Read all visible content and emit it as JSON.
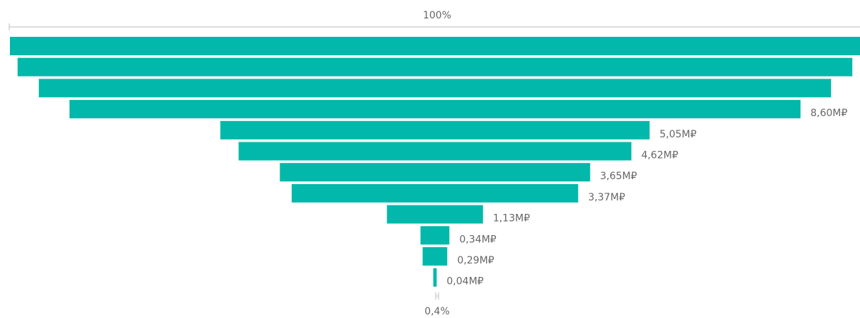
{
  "chart_data": {
    "type": "funnel",
    "title": "",
    "top_percent_label": "100%",
    "bottom_percent_label": "0,4%",
    "bar_color": "#01b8aa",
    "stages": [
      {
        "value": 10.0,
        "label": ""
      },
      {
        "value": 9.82,
        "label": ""
      },
      {
        "value": 9.32,
        "label": ""
      },
      {
        "value": 8.6,
        "label": "8,60M₽"
      },
      {
        "value": 5.05,
        "label": "5,05M₽"
      },
      {
        "value": 4.62,
        "label": "4,62M₽"
      },
      {
        "value": 3.65,
        "label": "3,65M₽"
      },
      {
        "value": 3.37,
        "label": "3,37M₽"
      },
      {
        "value": 1.13,
        "label": "1,13M₽"
      },
      {
        "value": 0.34,
        "label": "0,34M₽"
      },
      {
        "value": 0.29,
        "label": "0,29M₽"
      },
      {
        "value": 0.04,
        "label": "0,04M₽"
      }
    ]
  }
}
